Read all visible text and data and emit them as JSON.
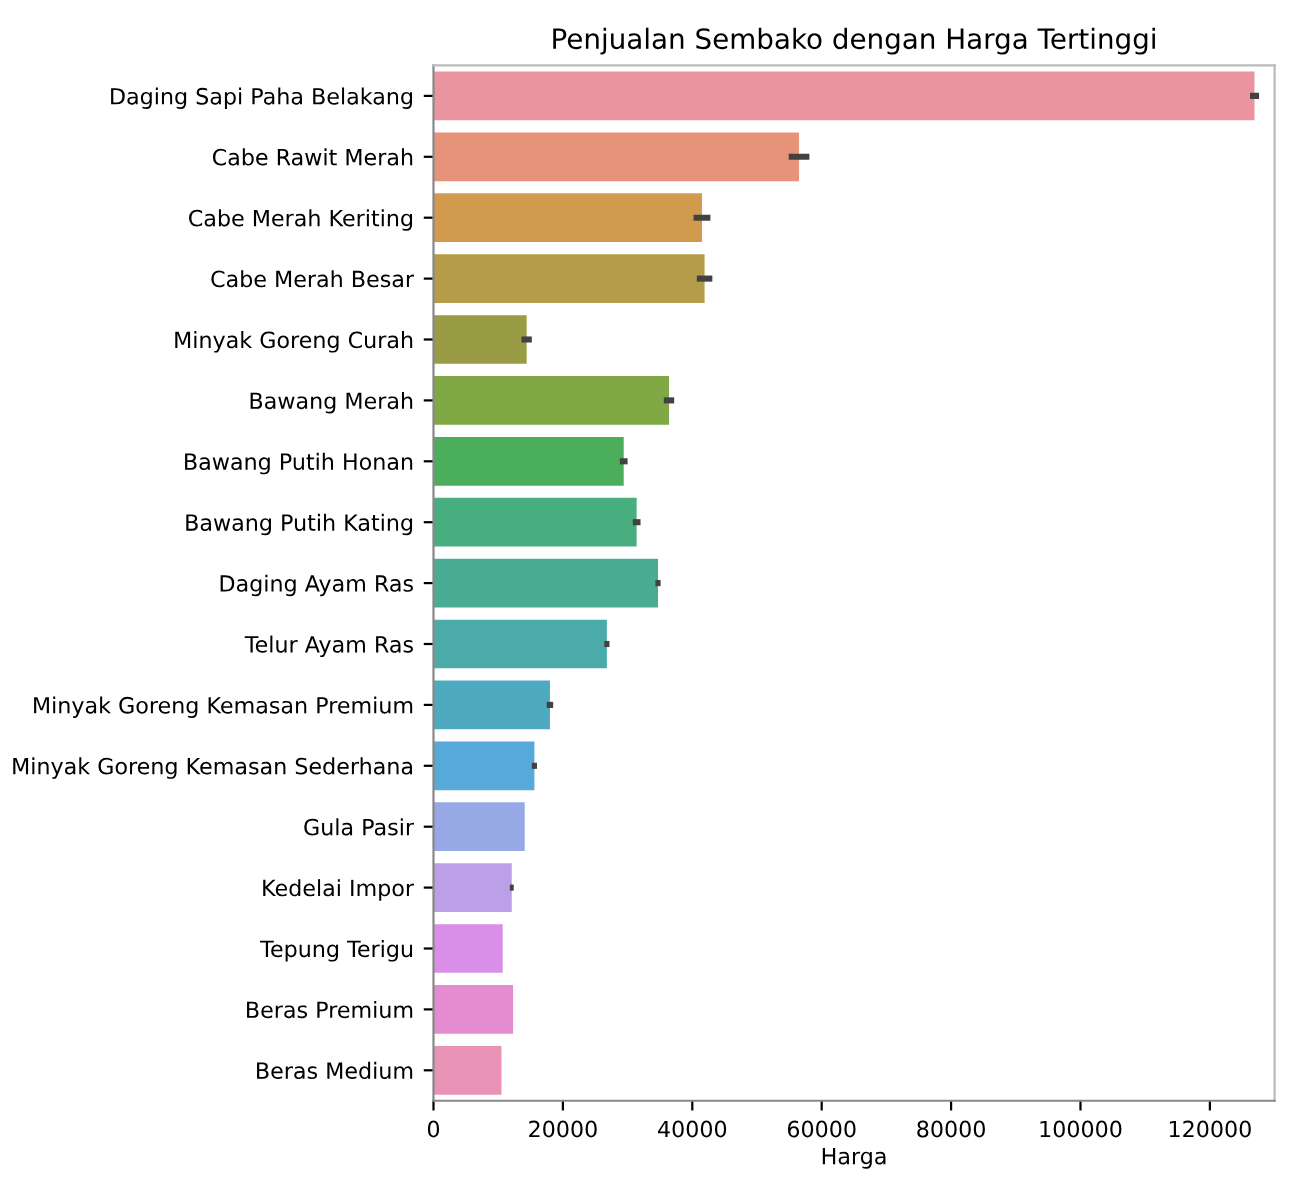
{
  "chart_data": {
    "type": "bar",
    "orientation": "horizontal",
    "title": "Penjualan Sembako dengan Harga Tertinggi",
    "xlabel": "Harga",
    "categories": [
      "Daging Sapi Paha Belakang",
      "Cabe Rawit Merah",
      "Cabe Merah Keriting",
      "Cabe Merah Besar",
      "Minyak Goreng Curah",
      "Bawang Merah",
      "Bawang Putih Honan",
      "Bawang Putih Kating",
      "Daging Ayam Ras",
      "Telur Ayam Ras",
      "Minyak Goreng Kemasan Premium",
      "Minyak Goreng Kemasan Sederhana",
      "Gula Pasir",
      "Kedelai Impor",
      "Tepung Terigu",
      "Beras Premium",
      "Beras Medium"
    ],
    "values": [
      126900,
      56500,
      41500,
      41900,
      14400,
      36400,
      29400,
      31400,
      34700,
      26800,
      18000,
      15600,
      14100,
      12100,
      10700,
      12300,
      10500
    ],
    "errors": [
      700,
      1600,
      1300,
      1200,
      800,
      800,
      600,
      600,
      400,
      400,
      500,
      400,
      null,
      300,
      null,
      null,
      null
    ],
    "colors": [
      "#e9949f",
      "#e6937a",
      "#d19a4c",
      "#b59c48",
      "#9a9c45",
      "#80a845",
      "#4bae5a",
      "#48ae7f",
      "#49ad93",
      "#4aaba9",
      "#4eaac0",
      "#56a9d8",
      "#96a9e6",
      "#bba0e8",
      "#d98ee8",
      "#e48ccf",
      "#e893b6"
    ],
    "xlim": [
      0,
      130000
    ],
    "xticks": [
      0,
      20000,
      40000,
      60000,
      80000,
      100000,
      120000
    ],
    "grid": false,
    "legend": false
  }
}
